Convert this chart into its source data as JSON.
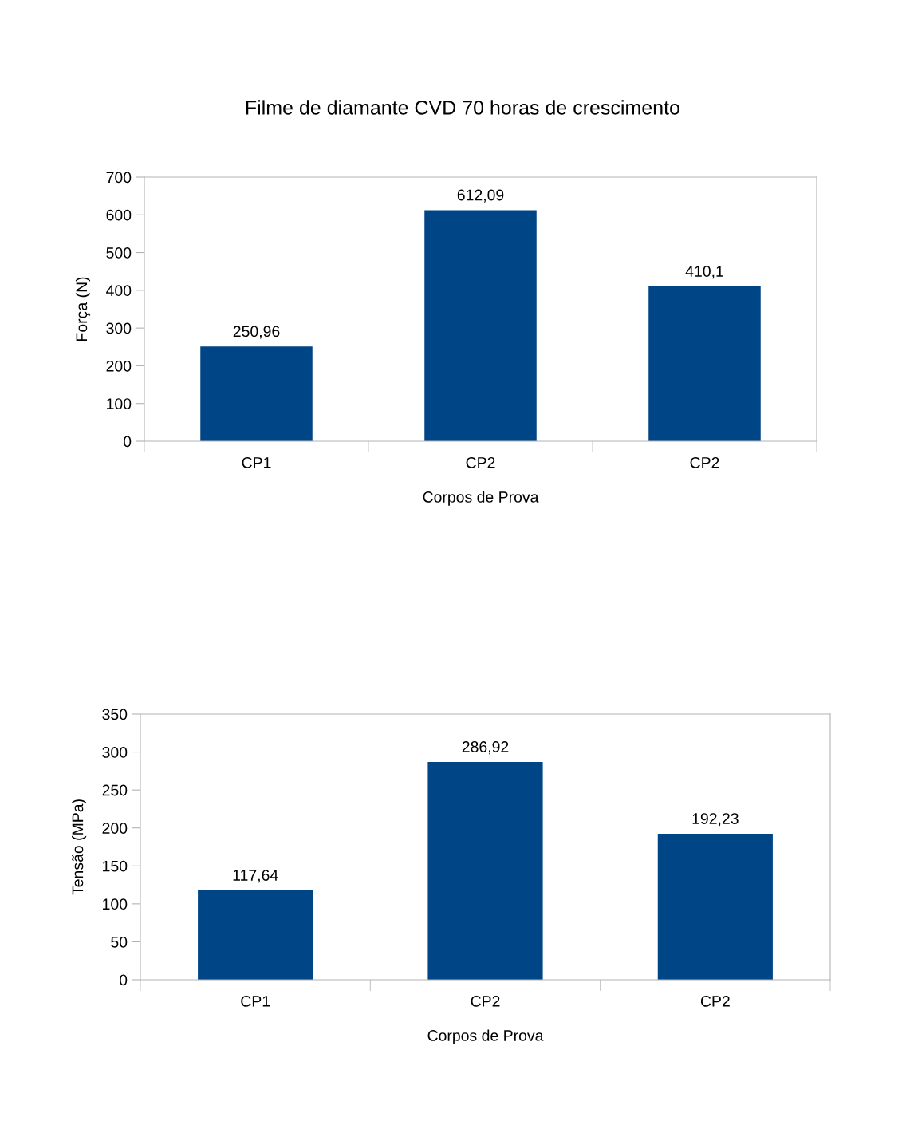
{
  "chart_data": [
    {
      "type": "bar",
      "title": "Filme de diamante CVD 70 horas de crescimento",
      "xlabel": "Corpos de Prova",
      "ylabel": "Força (N)",
      "categories": [
        "CP1",
        "CP2",
        "CP2"
      ],
      "values": [
        250.96,
        612.09,
        410.1
      ],
      "value_labels": [
        "250,96",
        "612,09",
        "410,1"
      ],
      "color": "#004586",
      "ylim": [
        0,
        700
      ],
      "yticks": [
        0,
        100,
        200,
        300,
        400,
        500,
        600,
        700
      ],
      "grid": false
    },
    {
      "type": "bar",
      "xlabel": "Corpos de Prova",
      "ylabel": "Tensão (MPa)",
      "categories": [
        "CP1",
        "CP2",
        "CP2"
      ],
      "values": [
        117.64,
        286.92,
        192.23
      ],
      "value_labels": [
        "117,64",
        "286,92",
        "192,23"
      ],
      "color": "#004586",
      "ylim": [
        0,
        350
      ],
      "yticks": [
        0,
        50,
        100,
        150,
        200,
        250,
        300,
        350
      ],
      "grid": false
    }
  ]
}
